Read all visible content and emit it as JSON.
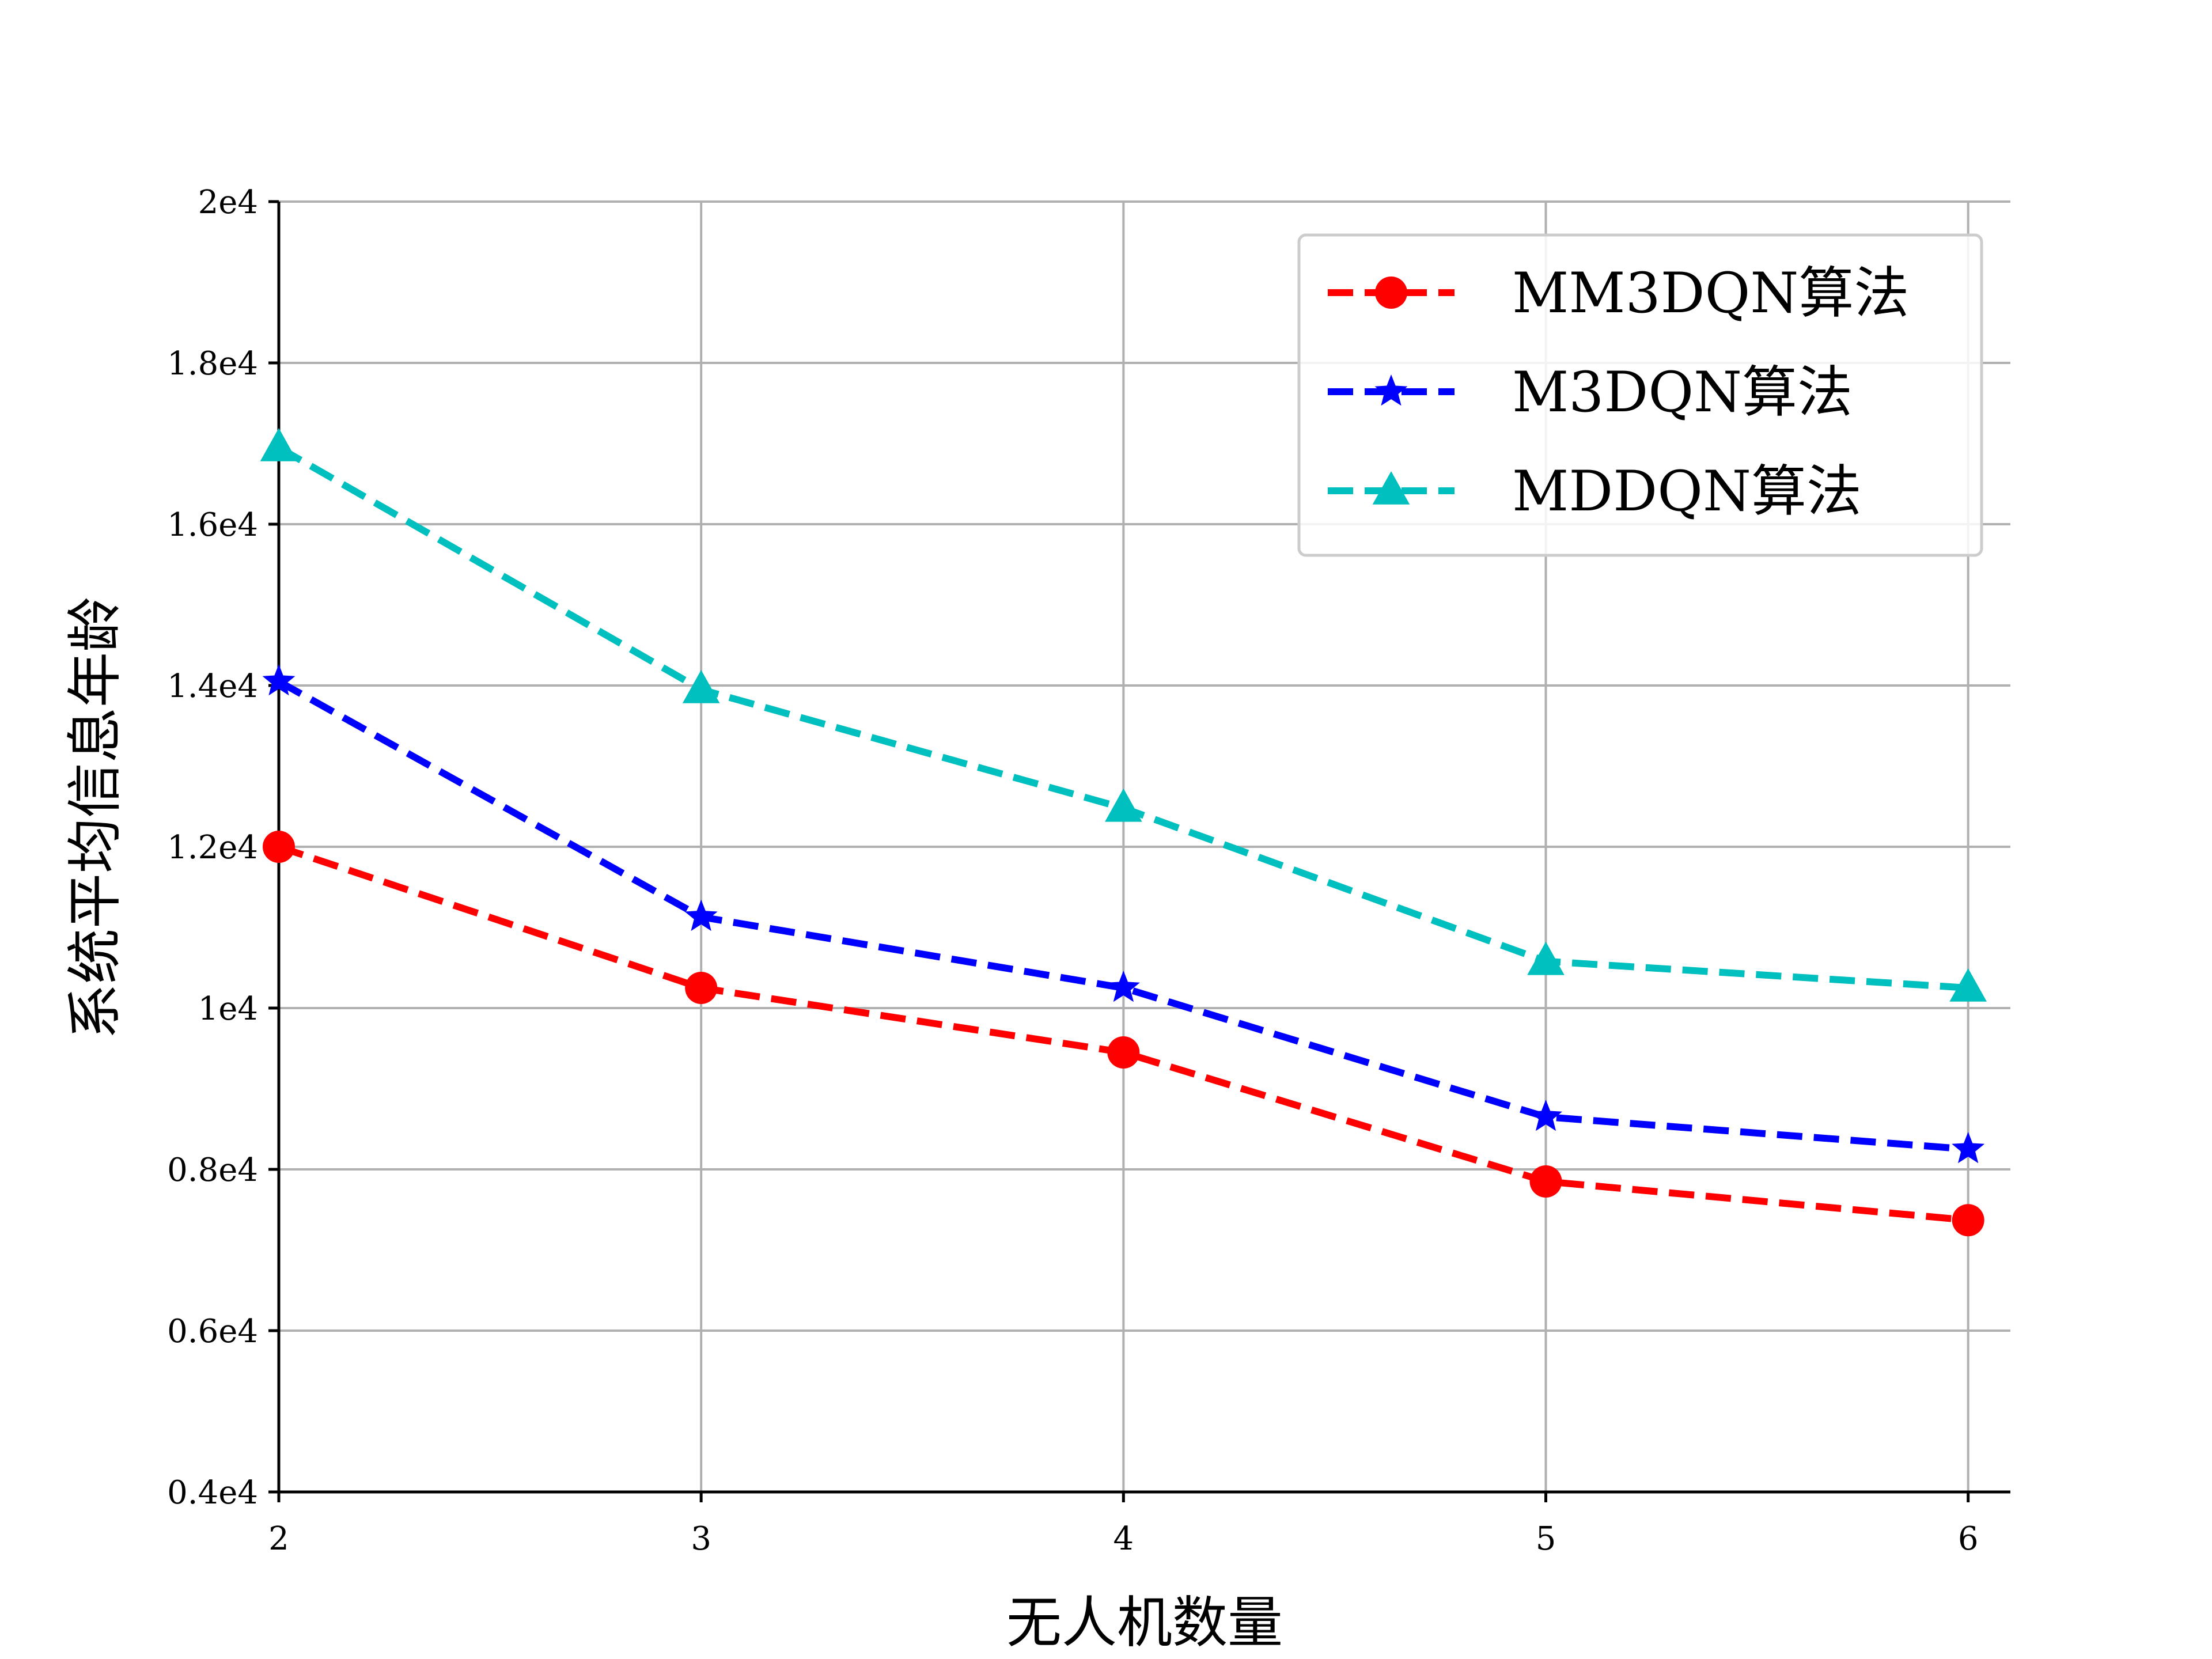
{
  "chart_data": {
    "type": "line",
    "title": "",
    "xlabel": "无人机数量",
    "ylabel": "系统平均信息年龄",
    "x": [
      2,
      3,
      4,
      5,
      6
    ],
    "xlim": [
      2,
      6.1
    ],
    "ylim": [
      4000,
      20000
    ],
    "xticks": [
      2,
      3,
      4,
      5,
      6
    ],
    "xtick_labels": [
      "2",
      "3",
      "4",
      "5",
      "6"
    ],
    "yticks": [
      4000,
      6000,
      8000,
      10000,
      12000,
      14000,
      16000,
      18000,
      20000
    ],
    "ytick_labels": [
      "0.4e4",
      "0.6e4",
      "0.8e4",
      "1e4",
      "1.2e4",
      "1.4e4",
      "1.6e4",
      "1.8e4",
      "2e4"
    ],
    "grid": true,
    "legend_position": "top-right",
    "series": [
      {
        "name": "MM3DQN算法",
        "color": "#ff0000",
        "marker": "circle",
        "values": [
          12000,
          10250,
          9450,
          7850,
          7370
        ]
      },
      {
        "name": "M3DQN算法",
        "color": "#0000ff",
        "marker": "star",
        "values": [
          14050,
          11130,
          10250,
          8650,
          8250
        ]
      },
      {
        "name": "MDDQN算法",
        "color": "#00bfbf",
        "marker": "triangle",
        "values": [
          16950,
          13950,
          12480,
          10580,
          10250
        ]
      }
    ]
  }
}
